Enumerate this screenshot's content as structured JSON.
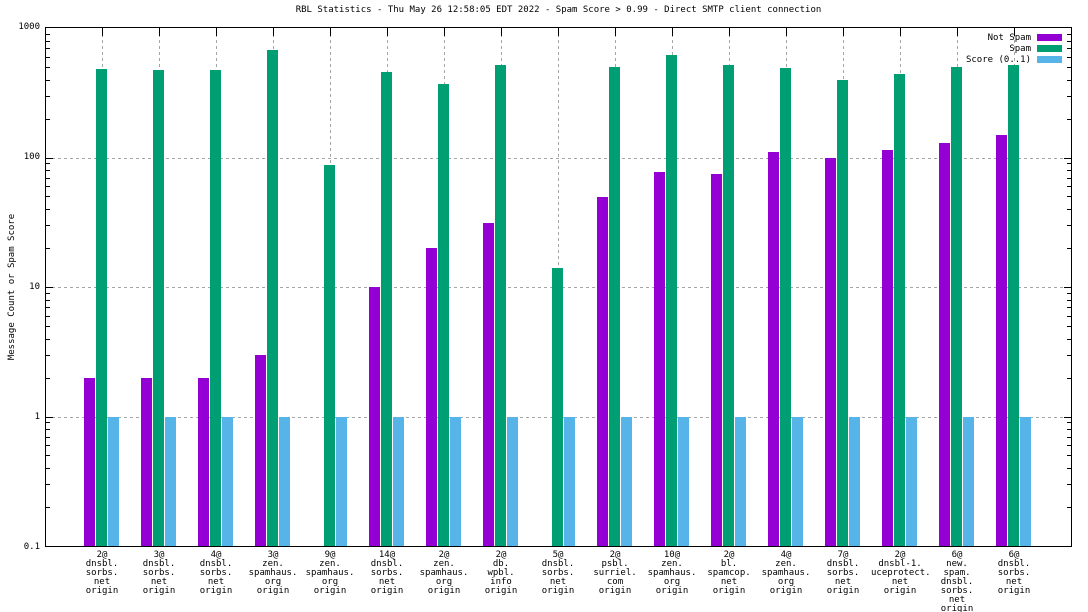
{
  "title": "RBL Statistics - Thu May 26 12:58:05 EDT 2022 - Spam Score > 0.99 - Direct SMTP client connection",
  "y_axis": {
    "label": "Message Count or Spam Score",
    "ticks": [
      "1000",
      "100",
      "10",
      "1",
      "0.1"
    ]
  },
  "colors": {
    "not_spam": "#9400d3",
    "spam": "#009e73",
    "score": "#56b4e9",
    "grid": "#a6a6a6",
    "axis": "#000000"
  },
  "chart_data": {
    "type": "bar",
    "scale": "log",
    "ylim": [
      0.1,
      1000
    ],
    "grid": "both-dashed",
    "legend_position": "top-right-inside",
    "title": "RBL Statistics - Thu May 26 12:58:05 EDT 2022 - Spam Score > 0.99 - Direct SMTP client connection",
    "xlabel": "",
    "ylabel": "Message Count or Spam Score",
    "categories": [
      [
        "2@",
        "dnsbl.",
        "sorbs.",
        "net",
        "origin"
      ],
      [
        "3@",
        "dnsbl.",
        "sorbs.",
        "net",
        "origin"
      ],
      [
        "4@",
        "dnsbl.",
        "sorbs.",
        "net",
        "origin"
      ],
      [
        "3@",
        "zen.",
        "spamhaus.",
        "org",
        "origin"
      ],
      [
        "9@",
        "zen.",
        "spamhaus.",
        "org",
        "origin"
      ],
      [
        "14@",
        "dnsbl.",
        "sorbs.",
        "net",
        "origin"
      ],
      [
        "2@",
        "zen.",
        "spamhaus.",
        "org",
        "origin"
      ],
      [
        "2@",
        "db.",
        "wpbl.",
        "info",
        "origin"
      ],
      [
        "5@",
        "dnsbl.",
        "sorbs.",
        "net",
        "origin"
      ],
      [
        "2@",
        "psbl.",
        "surriel.",
        "com",
        "origin"
      ],
      [
        "10@",
        "zen.",
        "spamhaus.",
        "org",
        "origin"
      ],
      [
        "2@",
        "bl.",
        "spamcop.",
        "net",
        "origin"
      ],
      [
        "4@",
        "zen.",
        "spamhaus.",
        "org",
        "origin"
      ],
      [
        "7@",
        "dnsbl.",
        "sorbs.",
        "net",
        "origin"
      ],
      [
        "2@",
        "dnsbl-1.",
        "uceprotect.",
        "net",
        "origin"
      ],
      [
        "6@",
        "new.",
        "spam.",
        "dnsbl.",
        "sorbs.",
        "net",
        "origin"
      ],
      [
        "6@",
        "dnsbl.",
        "sorbs.",
        "net",
        "origin"
      ]
    ],
    "series": [
      {
        "name": "Not Spam",
        "color": "#9400d3",
        "values": [
          2,
          2,
          2,
          3,
          0,
          10,
          20,
          31,
          0,
          50,
          78,
          75,
          110,
          100,
          115,
          130,
          150
        ]
      },
      {
        "name": "Spam",
        "color": "#009e73",
        "values": [
          480,
          475,
          475,
          680,
          88,
          460,
          370,
          520,
          14,
          500,
          620,
          520,
          490,
          400,
          440,
          500,
          520
        ]
      },
      {
        "name": "Score (0..1)",
        "color": "#56b4e9",
        "values": [
          1,
          1,
          1,
          1,
          1,
          1,
          1,
          1,
          1,
          1,
          1,
          1,
          1,
          1,
          1,
          1,
          1
        ]
      }
    ]
  }
}
